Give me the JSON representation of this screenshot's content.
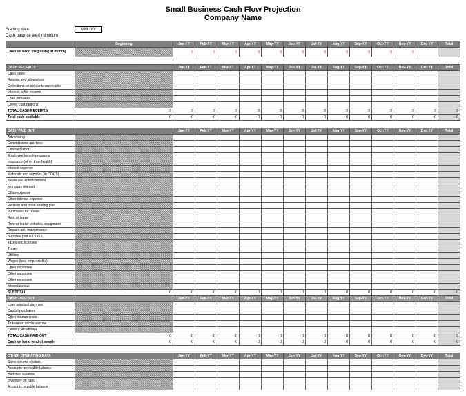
{
  "title1": "Small Business Cash Flow Projection",
  "title2": "Company Name",
  "meta": {
    "starting_date_label": "Starting date",
    "starting_date_value": "MM -YY",
    "alert_label": "Cash balance alert minimum"
  },
  "months": [
    "Jan-YY",
    "Feb-YY",
    "Mar-YY",
    "Apr-YY",
    "May-YY",
    "Jun-YY",
    "Jul-YY",
    "Aug-YY",
    "Sep-YY",
    "Oct-YY",
    "Nov-YY",
    "Dec-YY"
  ],
  "months_sp": [
    "Jan-YY",
    "Feb-YY",
    "Mar-YY",
    "Apr-YY",
    "May-YY",
    "Jun-YY",
    "Jul-YY",
    "Aug-YY",
    "Sep-YY",
    "Oct-YY",
    "Nov-YY",
    "Dec-YY"
  ],
  "beginning_label": "Beginning",
  "total_label": "Total",
  "section_cash_on_hand": {
    "row_label": "Cash on hand (beginning of month)",
    "values": [
      "",
      "0",
      "0",
      "0",
      "0",
      "0",
      "0",
      "0",
      "0",
      "0",
      "0",
      "0",
      ""
    ]
  },
  "section_receipts": {
    "header": "CASH RECEIPTS",
    "rows": [
      "Cash sales",
      "Returns and allowances",
      "Collections on accounts receivable",
      "Interest, other income",
      "Loan proceeds",
      "Owner contributions"
    ],
    "total_row": "TOTAL CASH RECEIPTS",
    "total_values": [
      "0",
      "0",
      "0",
      "0",
      "0",
      "0",
      "0",
      "0",
      "0",
      "0",
      "0",
      "0",
      "0"
    ],
    "avail_row": "Total cash available",
    "avail_values": [
      "0",
      "0",
      "0",
      "0",
      "0",
      "0",
      "0",
      "0",
      "0",
      "0",
      "0",
      "0",
      "0"
    ]
  },
  "section_paidout": {
    "header": "CASH PAID OUT",
    "rows": [
      "Advertising",
      "Commissions and fees",
      "Contract labor",
      "Employee benefit programs",
      "Insurance (other than health)",
      "Interest expense",
      "Materials and supplies (in COGS)",
      "Meals and entertainment",
      "Mortgage interest",
      "Office expense",
      "Other interest expense",
      "Pension and profit-sharing plan",
      "Purchases for resale",
      "Rent or lease",
      "Rent or lease: vehicles, equipment",
      "Repairs and maintenance",
      "Supplies (not in COGS)",
      "Taxes and licenses",
      "Travel",
      "Utilities",
      "Wages (less emp. credits)",
      "Other expenses",
      "Other expenses",
      "Other expenses",
      "Miscellaneous"
    ],
    "subtotal_row": "SUBTOTAL",
    "subtotal_values": [
      "0",
      "0",
      "0",
      "0",
      "0",
      "0",
      "0",
      "0",
      "0",
      "0",
      "0",
      "0",
      "0"
    ],
    "header2": "CASH PAID OUT",
    "rows2": [
      "Loan principal payment",
      "Capital purchases",
      "Other startup costs",
      "To reserve and/or escrow",
      "Owners' withdrawal"
    ],
    "total_row": "TOTAL CASH PAID OUT",
    "total_values": [
      "0",
      "0",
      "0",
      "0",
      "0",
      "0",
      "0",
      "0",
      "0",
      "0",
      "0",
      "0",
      "0"
    ],
    "end_row": "Cash on hand (end of month)",
    "end_values": [
      "0",
      "0",
      "0",
      "0",
      "0",
      "0",
      "0",
      "0",
      "0",
      "0",
      "0",
      "0",
      "0"
    ]
  },
  "section_other": {
    "header": "OTHER OPERATING DATA",
    "rows": [
      "Sales volume (dollars)",
      "Accounts receivable balance",
      "Bad debt balance",
      "Inventory on hand",
      "Accounts payable balance"
    ]
  }
}
